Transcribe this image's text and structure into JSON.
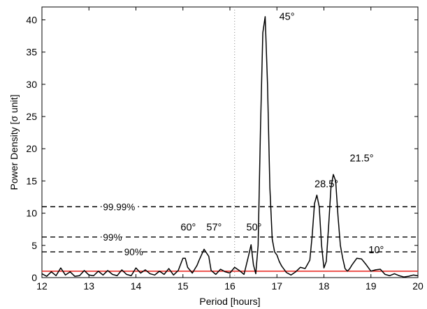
{
  "chart_data": {
    "type": "line",
    "xlabel": "Period [hours]",
    "ylabel": "Power Density [σ unit]",
    "xlim": [
      12,
      20
    ],
    "ylim": [
      0,
      42
    ],
    "xticks": [
      12,
      13,
      14,
      15,
      16,
      17,
      18,
      19,
      20
    ],
    "yticks": [
      0,
      5,
      10,
      15,
      20,
      25,
      30,
      35,
      40
    ],
    "series": [
      {
        "x": [
          12.0,
          12.1,
          12.2,
          12.3,
          12.4,
          12.5,
          12.6,
          12.7,
          12.8,
          12.9,
          13.0,
          13.1,
          13.2,
          13.3,
          13.4,
          13.5,
          13.6,
          13.7,
          13.8,
          13.9,
          14.0,
          14.1,
          14.2,
          14.3,
          14.4,
          14.5,
          14.6,
          14.7,
          14.8,
          14.9,
          15.0,
          15.05,
          15.1,
          15.2,
          15.3,
          15.35,
          15.45,
          15.55,
          15.6,
          15.7,
          15.8,
          15.9,
          16.0,
          16.1,
          16.2,
          16.3,
          16.4,
          16.45,
          16.5,
          16.55,
          16.6,
          16.65,
          16.7,
          16.75,
          16.8,
          16.85,
          16.9,
          16.95,
          17.0,
          17.05,
          17.1,
          17.2,
          17.3,
          17.4,
          17.5,
          17.6,
          17.7,
          17.75,
          17.8,
          17.85,
          17.9,
          17.95,
          18.0,
          18.05,
          18.1,
          18.15,
          18.2,
          18.25,
          18.3,
          18.35,
          18.4,
          18.45,
          18.5,
          18.55,
          18.6,
          18.7,
          18.8,
          18.9,
          19.0,
          19.1,
          19.2,
          19.3,
          19.4,
          19.5,
          19.6,
          19.7,
          19.8,
          19.9,
          20.0
        ],
        "y": [
          0.6,
          0.2,
          0.9,
          0.3,
          1.5,
          0.4,
          0.9,
          0.2,
          0.3,
          1.1,
          0.4,
          0.3,
          1.0,
          0.4,
          1.1,
          0.5,
          0.3,
          1.2,
          0.5,
          0.3,
          1.5,
          0.7,
          1.2,
          0.6,
          0.4,
          1.0,
          0.5,
          1.4,
          0.4,
          1.1,
          3.0,
          3.0,
          1.6,
          0.7,
          1.9,
          2.8,
          4.4,
          3.3,
          1.1,
          0.5,
          1.3,
          0.9,
          0.7,
          1.6,
          1.1,
          0.5,
          3.5,
          5.1,
          2.0,
          0.6,
          5.0,
          23.0,
          38.0,
          40.5,
          30.0,
          14.0,
          6.0,
          4.0,
          3.5,
          2.5,
          1.8,
          0.8,
          0.4,
          0.9,
          1.6,
          1.4,
          2.7,
          6.5,
          11.5,
          12.8,
          11.0,
          5.0,
          1.5,
          2.5,
          8.0,
          14.0,
          16.0,
          15.0,
          9.5,
          5.0,
          3.0,
          1.4,
          1.0,
          1.4,
          2.0,
          3.0,
          2.9,
          2.0,
          1.0,
          1.2,
          1.3,
          0.5,
          0.3,
          0.6,
          0.3,
          0.1,
          0.2,
          0.4,
          0.3
        ]
      }
    ],
    "hlines": [
      {
        "y": 11.0,
        "label": "99.99%",
        "label_x": 13.3,
        "style": "dashed"
      },
      {
        "y": 6.3,
        "label": "99%",
        "label_x": 13.3,
        "style": "dashed"
      },
      {
        "y": 4.0,
        "label": "90%",
        "label_x": 13.75,
        "style": "dashed"
      },
      {
        "y": 1.0,
        "label": "",
        "style": "solid",
        "color": "#e8201a"
      }
    ],
    "vlines": [
      {
        "x": 16.1,
        "style": "dotted"
      }
    ],
    "annotations": [
      {
        "x": 17.05,
        "y": 40.0,
        "text": "45°"
      },
      {
        "x": 18.55,
        "y": 18.0,
        "text": "21.5°"
      },
      {
        "x": 17.8,
        "y": 14.0,
        "text": "28.5°"
      },
      {
        "x": 15.5,
        "y": 7.3,
        "text": "57°"
      },
      {
        "x": 14.95,
        "y": 7.3,
        "text": "60°"
      },
      {
        "x": 16.35,
        "y": 7.3,
        "text": "50°"
      },
      {
        "x": 18.95,
        "y": 3.8,
        "text": "10°"
      }
    ],
    "grid": false
  }
}
